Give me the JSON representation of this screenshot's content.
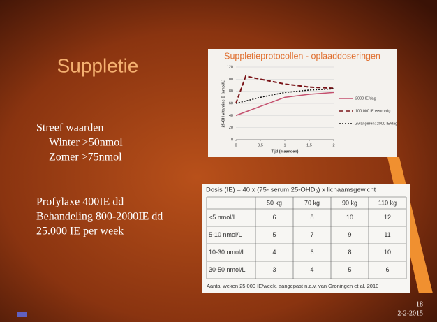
{
  "title": "Suppletie",
  "text": [
    "Streef waarden",
    "Winter >50nmol",
    "Zomer >75nmol",
    "Profylaxe 400IE dd",
    "Behandeling 800-2000IE dd",
    "25.000 IE per week"
  ],
  "chart": {
    "type": "line",
    "title": "Suppletieprotocollen - oplaaddoseringen",
    "x_label": "Tijd (maanden)",
    "y_label": "25-OH vitamine D (nmol/L)",
    "x": [
      0,
      0.2,
      0.5,
      1,
      1.5,
      2
    ],
    "series": [
      {
        "name": "2000 IE/dag",
        "color": "#c4506e",
        "dash": "solid",
        "values": [
          40,
          46,
          55,
          70,
          75,
          78
        ]
      },
      {
        "name": "100.000 IE eenmalig",
        "color": "#7a1418",
        "dash": "dashed",
        "values": [
          60,
          105,
          100,
          92,
          87,
          85
        ]
      },
      {
        "name": "Zwangeren: 2000 IE/dag",
        "color": "#111111",
        "dash": "dotted",
        "values": [
          60,
          64,
          70,
          78,
          82,
          84
        ]
      }
    ],
    "xlim": [
      0,
      2
    ],
    "ylim": [
      0,
      120
    ],
    "xticks": [
      0,
      {
        "value": 0.5,
        "label": "0,5"
      },
      1,
      {
        "value": 1.5,
        "label": "1,5"
      },
      2
    ],
    "yticks": [
      0,
      20,
      40,
      60,
      80,
      100,
      120
    ],
    "grid": true
  },
  "table": {
    "caption": "Dosis (IE) = 40 x (75- serum 25-OHD₃) x lichaamsgewicht",
    "header": [
      "50 kg",
      "70 kg",
      "90 kg",
      "110 kg"
    ],
    "rows": [
      [
        "<5 nmol/L",
        6,
        8,
        10,
        12
      ],
      [
        "5-10 nmol/L",
        5,
        7,
        9,
        11
      ],
      [
        "10-30 nmol/L",
        4,
        6,
        8,
        10
      ],
      [
        "30-50 nmol/L",
        3,
        4,
        5,
        6
      ]
    ],
    "footnote": "Aantal weken 25.000 IE/week, aangepast n.a.v. van Groningen et al, 2010"
  },
  "slide_number": "18",
  "date": "2-2-2015"
}
